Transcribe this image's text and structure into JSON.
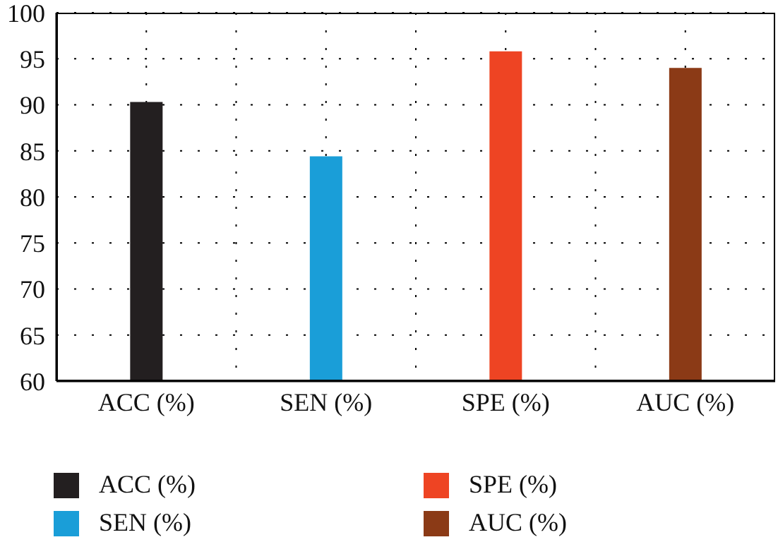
{
  "chart_data": {
    "type": "bar",
    "categories": [
      "ACC (%)",
      "SEN (%)",
      "SPE (%)",
      "AUC (%)"
    ],
    "stacked": true,
    "series": [
      {
        "name": "ACC (%)",
        "color": "#231f20",
        "values": [
          90.3,
          null,
          null,
          null
        ]
      },
      {
        "name": "SEN (%)",
        "color": "#1a9ed8",
        "values": [
          null,
          84.4,
          null,
          null
        ]
      },
      {
        "name": "SPE (%)",
        "color": "#ee4423",
        "values": [
          null,
          null,
          95.8,
          null
        ]
      },
      {
        "name": "AUC (%)",
        "color": "#8b3a16",
        "values": [
          null,
          null,
          null,
          94.0
        ]
      }
    ],
    "ylim": [
      60,
      100
    ],
    "yticks": [
      60,
      65,
      70,
      75,
      80,
      85,
      90,
      95,
      100
    ],
    "grid": true,
    "legend": "bottom"
  }
}
